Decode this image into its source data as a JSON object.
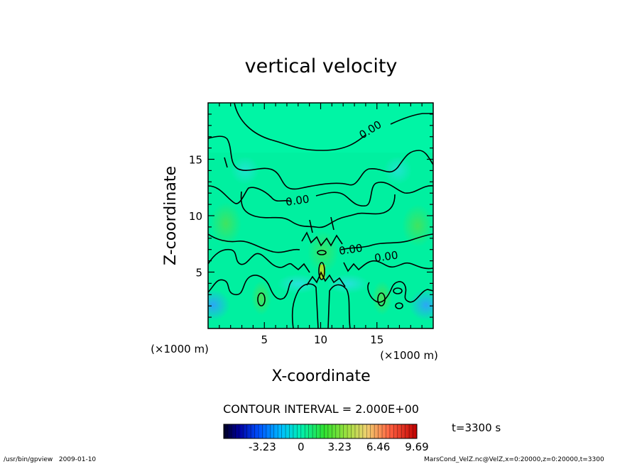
{
  "chart_data": {
    "type": "heatmap",
    "title": "vertical velocity",
    "xlabel": "X-coordinate",
    "ylabel": "Z-coordinate",
    "x_unit": "(×1000 m)",
    "y_unit": "(×1000 m)",
    "xlim": [
      0,
      20
    ],
    "ylim": [
      0,
      20
    ],
    "x_ticks": [
      5,
      10,
      15
    ],
    "y_ticks": [
      5,
      10,
      15
    ],
    "contour_labels": [
      "0.00",
      "0.00",
      "0.00",
      "0.00"
    ],
    "contour_interval_text": "CONTOUR INTERVAL = 2.000E+00",
    "colorbar": {
      "min": -6.46,
      "max": 9.69,
      "tick_labels": [
        "-3.23",
        "0",
        "3.23",
        "6.46",
        "9.69"
      ],
      "tick_values": [
        -3.23,
        0,
        3.23,
        6.46,
        9.69
      ]
    },
    "time_label": "t=3300 s"
  },
  "footer": {
    "left": "/usr/bin/gpview   2009-01-10",
    "right": "MarsCond_VelZ.nc@VelZ,x=0:20000,z=0:20000,t=3300"
  },
  "colors": {
    "background_field": "#00f0a0",
    "contour_line": "#000000"
  }
}
